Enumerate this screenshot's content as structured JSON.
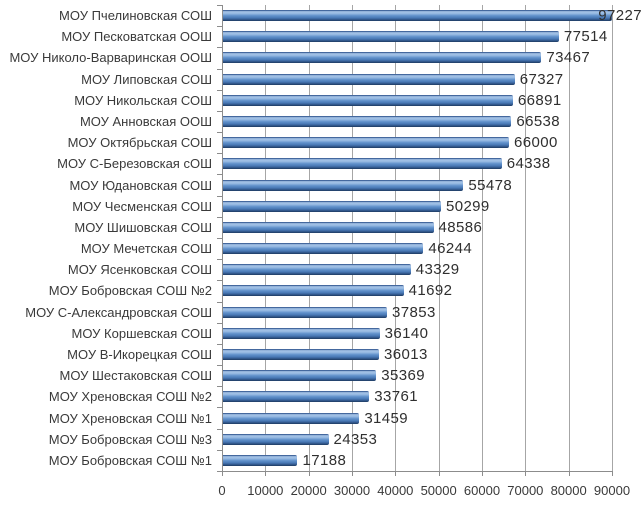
{
  "chart_data": {
    "type": "bar",
    "orientation": "horizontal",
    "title": "",
    "xlabel": "",
    "ylabel": "",
    "xlim": [
      0,
      90000
    ],
    "x_tick_step": 10000,
    "x_tick_labels": [
      "0",
      "10000",
      "20000",
      "30000",
      "40000",
      "50000",
      "60000",
      "70000",
      "80000",
      "90000"
    ],
    "grid": "vertical-only",
    "legend": "none",
    "data_labels": "outside-end",
    "categories": [
      "МОУ Пчелиновская СОШ",
      "МОУ Песковатская ООШ",
      "МОУ Николо-Варваринская ООШ",
      "МОУ Липовская СОШ",
      "МОУ Никольская СОШ",
      "МОУ Анновская ООШ",
      "МОУ Октябрьская СОШ",
      "МОУ С-Березовская сОШ",
      "МОУ Юдановская СОШ",
      "МОУ Чесменская СОШ",
      "МОУ Шишовская СОШ",
      "МОУ Мечетская СОШ",
      "МОУ Ясенковская СОШ",
      "МОУ Бобровская СОШ №2",
      "МОУ С-Александровская СОШ",
      "МОУ Коршевская СОШ",
      "МОУ В-Икорецкая СОШ",
      "МОУ Шестаковская СОШ",
      "МОУ Хреновская СОШ №2",
      "МОУ Хреновская СОШ №1",
      "МОУ Бобровская СОШ №3",
      "МОУ Бобровская СОШ №1"
    ],
    "values": [
      97227,
      77514,
      73467,
      67327,
      66891,
      66538,
      66000,
      64338,
      55478,
      50299,
      48586,
      46244,
      43329,
      41692,
      37853,
      36140,
      36013,
      35369,
      33761,
      31459,
      24353,
      17188
    ],
    "value_labels": [
      "97227",
      "77514",
      "73467",
      "67327",
      "66891",
      "66538",
      "66000",
      "64338",
      "55478",
      "50299",
      "48586",
      "46244",
      "43329",
      "41692",
      "37853",
      "36140",
      "36013",
      "35369",
      "33761",
      "31459",
      "24353",
      "17188"
    ],
    "colors": {
      "bar_base": "#4f81bd",
      "bar_highlight": "#a6c4e7",
      "bar_shadow": "#1d3a60",
      "gridline": "#a6a6a6",
      "axis": "#8c8c8c",
      "text": "#3a3a3a"
    }
  }
}
